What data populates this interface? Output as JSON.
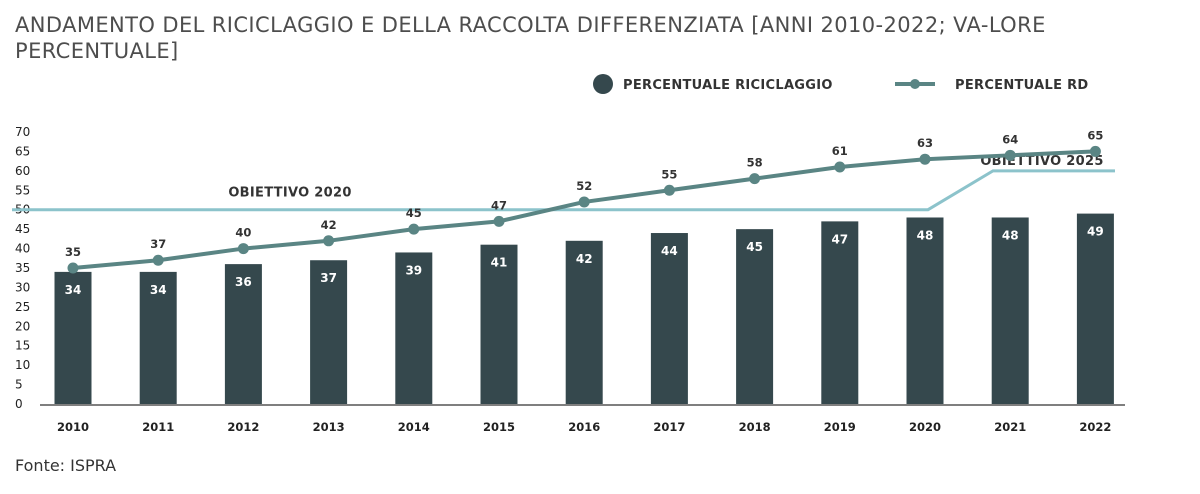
{
  "title": "ANDAMENTO DEL RICICLAGGIO E DELLA RACCOLTA DIFFERENZIATA [ANNI 2010-2022; VA-LORE PERCENTUALE]",
  "source": "Fonte: ISPRA",
  "colors": {
    "bars": "#35484d",
    "line": "#5a8584",
    "target": "#8cc3cb"
  },
  "chart_data": {
    "type": "bar",
    "categories": [
      "2010",
      "2011",
      "2012",
      "2013",
      "2014",
      "2015",
      "2016",
      "2017",
      "2018",
      "2019",
      "2020",
      "2021",
      "2022"
    ],
    "series": [
      {
        "name": "PERCENTUALE RICICLAGGIO",
        "type": "bar",
        "values": [
          34,
          34,
          36,
          37,
          39,
          41,
          42,
          44,
          45,
          47,
          48,
          48,
          49
        ]
      },
      {
        "name": "PERCENTUALE RD",
        "type": "line",
        "values": [
          35,
          37,
          40,
          42,
          45,
          47,
          52,
          55,
          58,
          61,
          63,
          64,
          65
        ]
      }
    ],
    "targets": [
      {
        "label": "OBIETTIVO 2020",
        "value": 50
      },
      {
        "label": "OBIETTIVO 2025",
        "value": 60
      }
    ],
    "yticks": [
      0,
      5,
      10,
      15,
      20,
      25,
      30,
      35,
      40,
      45,
      50,
      55,
      60,
      65,
      70
    ],
    "ylim": [
      0,
      70
    ],
    "legend_position": "top-right",
    "grid": false
  }
}
